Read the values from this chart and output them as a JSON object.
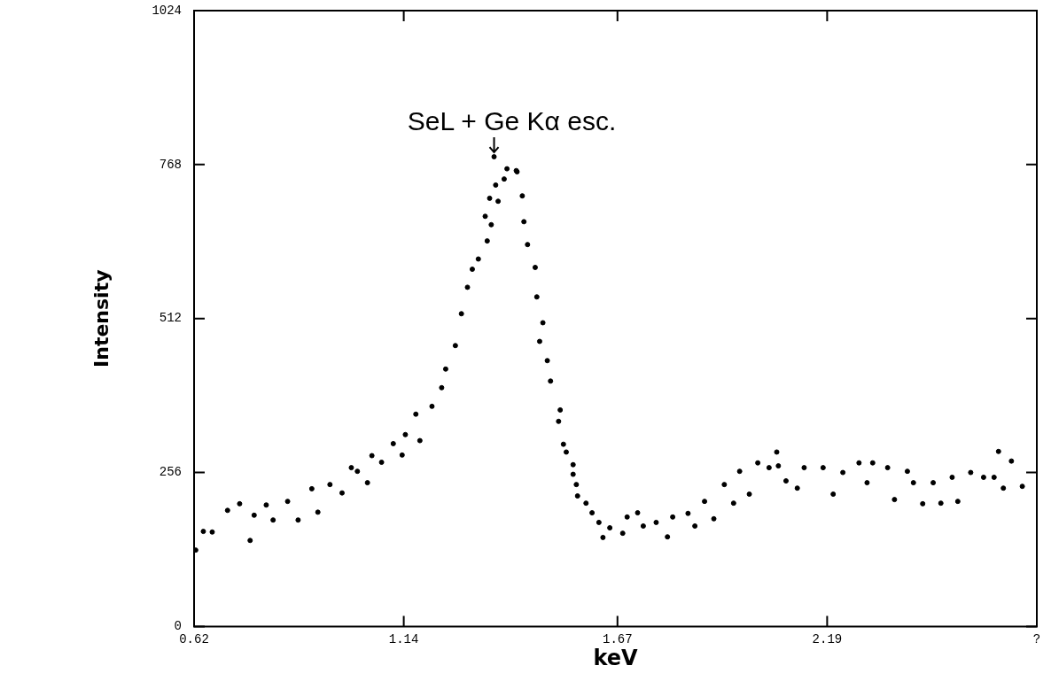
{
  "chart_data": {
    "type": "scatter",
    "xlabel": "keV",
    "ylabel": "Intensity",
    "annotations": [
      {
        "text": "SeL + Ge Kα esc.",
        "x": 1.364,
        "y": 781
      }
    ],
    "xlim": [
      0.62,
      2.71
    ],
    "xticks": [
      0.62,
      1.14,
      1.67,
      2.19,
      {
        "value": 2.71,
        "label": "?"
      }
    ],
    "ylim": [
      0,
      1024
    ],
    "yticks": [
      0,
      256,
      512,
      768,
      1024
    ],
    "grid": false,
    "legend": false,
    "marker": "circle",
    "series": [
      {
        "color": "#000000",
        "x": [
          0.624,
          0.643,
          0.665,
          0.703,
          0.733,
          0.759,
          0.769,
          0.799,
          0.816,
          0.852,
          0.878,
          0.912,
          0.927,
          0.957,
          0.987,
          1.01,
          1.025,
          1.05,
          1.061,
          1.085,
          1.114,
          1.136,
          1.144,
          1.17,
          1.18,
          1.21,
          1.234,
          1.244,
          1.268,
          1.283,
          1.298,
          1.31,
          1.325,
          1.347,
          1.357,
          1.342,
          1.353,
          1.374,
          1.368,
          1.389,
          1.364,
          1.396,
          1.421,
          1.419,
          1.434,
          1.438,
          1.447,
          1.466,
          1.47,
          1.485,
          1.477,
          1.496,
          1.504,
          1.528,
          1.524,
          1.536,
          1.543,
          1.56,
          1.56,
          1.568,
          1.571,
          1.592,
          1.607,
          1.624,
          1.634,
          1.651,
          1.683,
          1.694,
          1.72,
          1.734,
          1.766,
          1.794,
          1.807,
          1.845,
          1.862,
          1.886,
          1.909,
          1.935,
          1.958,
          1.973,
          1.997,
          2.018,
          2.046,
          2.065,
          2.069,
          2.088,
          2.116,
          2.133,
          2.18,
          2.205,
          2.229,
          2.269,
          2.289,
          2.303,
          2.34,
          2.357,
          2.389,
          2.404,
          2.427,
          2.453,
          2.472,
          2.5,
          2.514,
          2.546,
          2.578,
          2.604,
          2.615,
          2.627,
          2.647,
          2.674
        ],
        "values": [
          127,
          158,
          157,
          193,
          204,
          143,
          185,
          202,
          177,
          208,
          177,
          229,
          190,
          236,
          222,
          264,
          258,
          239,
          284,
          273,
          304,
          285,
          319,
          353,
          309,
          366,
          397,
          428,
          467,
          520,
          564,
          594,
          611,
          641,
          668,
          682,
          712,
          707,
          734,
          744,
          781,
          761,
          756,
          758,
          716,
          673,
          635,
          597,
          548,
          505,
          474,
          442,
          408,
          360,
          341,
          303,
          290,
          269,
          253,
          236,
          217,
          205,
          189,
          173,
          148,
          164,
          155,
          182,
          189,
          167,
          173,
          149,
          182,
          188,
          167,
          208,
          179,
          236,
          205,
          258,
          220,
          272,
          264,
          290,
          267,
          242,
          230,
          264,
          264,
          220,
          256,
          272,
          239,
          272,
          264,
          211,
          258,
          239,
          204,
          239,
          205,
          248,
          208,
          256,
          248,
          248,
          291,
          230,
          275,
          233
        ]
      }
    ]
  }
}
